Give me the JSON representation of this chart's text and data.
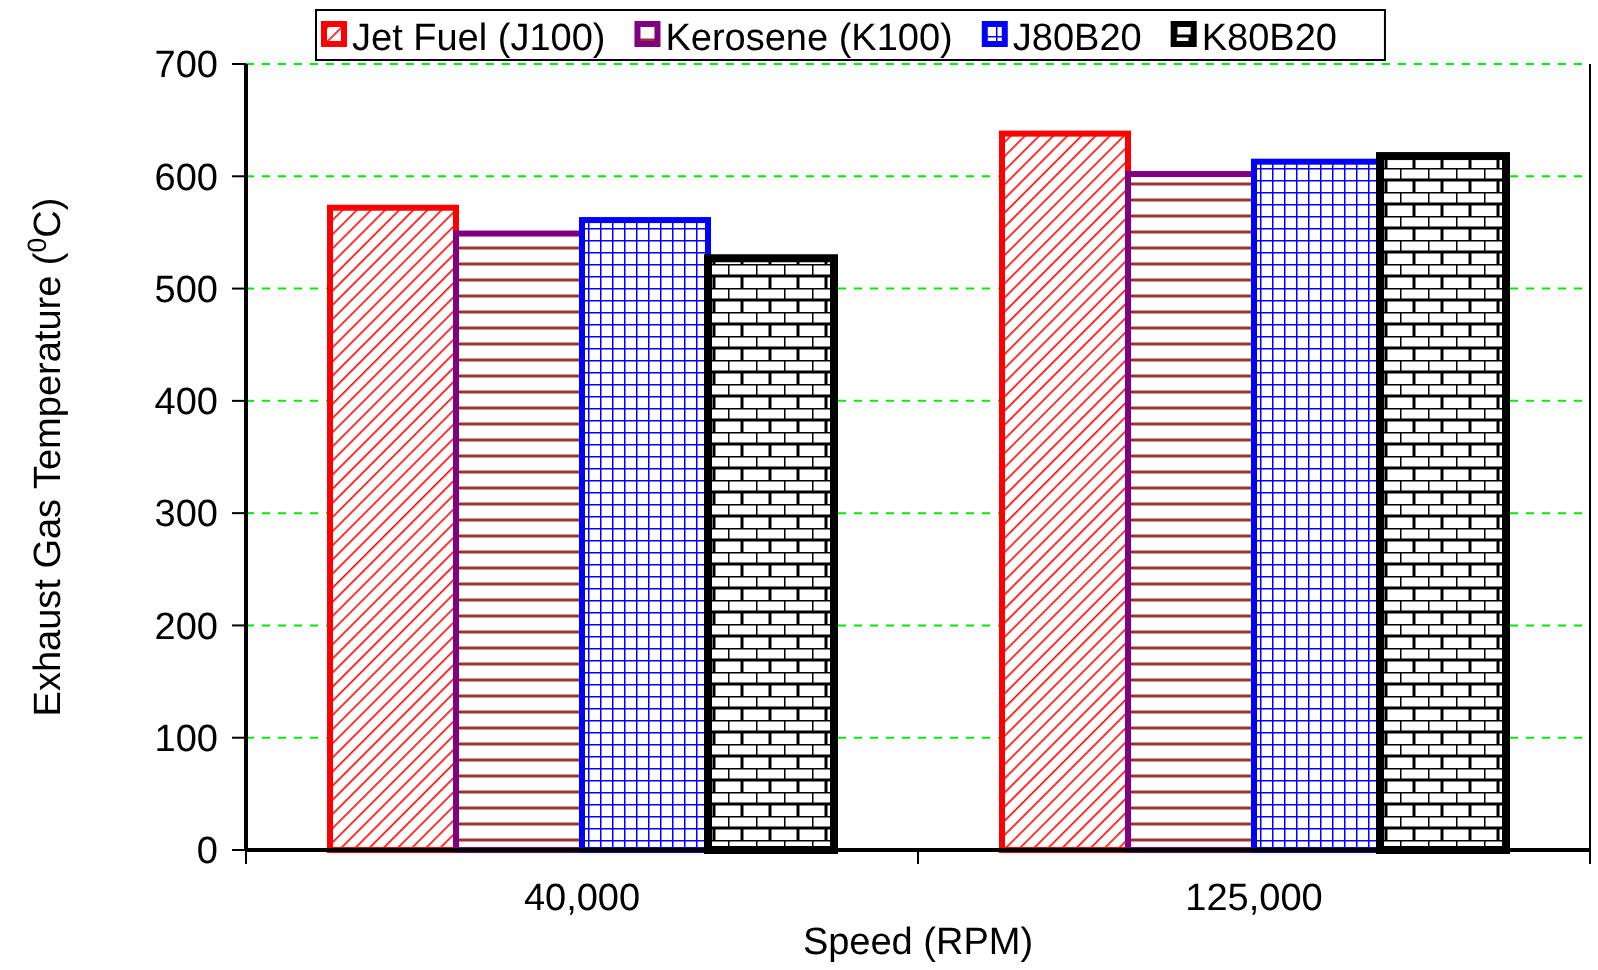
{
  "chart_data": {
    "type": "bar",
    "xlabel": "Speed (RPM)",
    "ylabel": "Exhaust Gas Temperature ($^{0}$C)",
    "categories": [
      "40,000",
      "125,000"
    ],
    "series": [
      {
        "name": "Jet Fuel (J100)",
        "color": "#ff0000",
        "values": [
          572,
          638
        ]
      },
      {
        "name": "Kerosene (K100)",
        "color": "#800080",
        "values": [
          549,
          602
        ]
      },
      {
        "name": "J80B20",
        "color": "#0000ff",
        "values": [
          561,
          613
        ]
      },
      {
        "name": "K80B20",
        "color": "#000000",
        "values": [
          527,
          618
        ]
      }
    ],
    "ylim": [
      0,
      700
    ],
    "yticks": [
      0,
      100,
      200,
      300,
      400,
      500,
      600,
      700
    ],
    "grid": "y",
    "legend": "top"
  }
}
